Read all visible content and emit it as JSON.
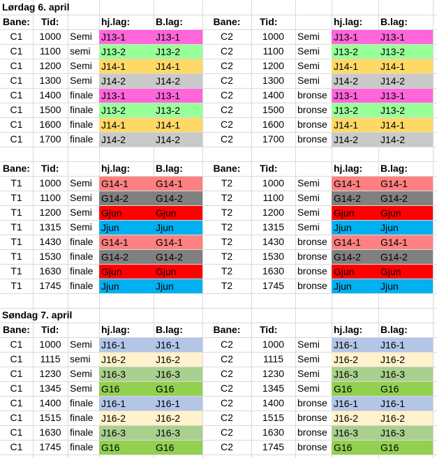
{
  "colors": {
    "J13-1": "#ff66d9",
    "J13-2": "#99ff99",
    "J14-1": "#ffd966",
    "J14-2": "#c9c9c9",
    "G14-1": "#ff8080",
    "G14-2": "#808080",
    "Gjun": "#ff0000",
    "Jjun": "#00b0f0",
    "J16-1": "#b4c6e7",
    "J16-2": "#fff2cc",
    "J16-3": "#a9d08e",
    "G16": "#92d050"
  },
  "sections": [
    {
      "title": "Lørdag 6. april",
      "headers": [
        "Bane:",
        "Tid:",
        "",
        "hj.lag:",
        "B.lag:",
        "Bane:",
        "Tid:",
        "",
        "hj.lag:",
        "B.lag:"
      ],
      "rows": [
        [
          "C1",
          "1000",
          "Semi",
          "J13-1",
          "J13-1",
          "C2",
          "1000",
          "Semi",
          "J13-1",
          "J13-1"
        ],
        [
          "C1",
          "1100",
          "semi",
          "J13-2",
          "J13-2",
          "C2",
          "1100",
          "Semi",
          "J13-2",
          "J13-2"
        ],
        [
          "C1",
          "1200",
          "Semi",
          "J14-1",
          "J14-1",
          "C2",
          "1200",
          "Semi",
          "J14-1",
          "J14-1"
        ],
        [
          "C1",
          "1300",
          "Semi",
          "J14-2",
          "J14-2",
          "C2",
          "1300",
          "Semi",
          "J14-2",
          "J14-2"
        ],
        [
          "C1",
          "1400",
          "finale",
          "J13-1",
          "J13-1",
          "C2",
          "1400",
          "bronse",
          "J13-1",
          "J13-1"
        ],
        [
          "C1",
          "1500",
          "finale",
          "J13-2",
          "J13-2",
          "C2",
          "1500",
          "bronse",
          "J13-2",
          "J13-2"
        ],
        [
          "C1",
          "1600",
          "finale",
          "J14-1",
          "J14-1",
          "C2",
          "1600",
          "bronse",
          "J14-1",
          "J14-1"
        ],
        [
          "C1",
          "1700",
          "finale",
          "J14-2",
          "J14-2",
          "C2",
          "1700",
          "bronse",
          "J14-2",
          "J14-2"
        ]
      ]
    },
    {
      "title": "",
      "headers": [
        "Bane:",
        "Tid:",
        "",
        "hj.lag:",
        "B.lag:",
        "Bane:",
        "Tid:",
        "",
        "hj.lag:",
        "B.lag:"
      ],
      "rows": [
        [
          "T1",
          "1000",
          "Semi",
          "G14-1",
          "G14-1",
          "T2",
          "1000",
          "Semi",
          "G14-1",
          "G14-1"
        ],
        [
          "T1",
          "1100",
          "Semi",
          "G14-2",
          "G14-2",
          "T2",
          "1100",
          "Semi",
          "G14-2",
          "G14-2"
        ],
        [
          "T1",
          "1200",
          "Semi",
          "Gjun",
          "Gjun",
          "T2",
          "1200",
          "Semi",
          "Gjun",
          "Gjun"
        ],
        [
          "T1",
          "1315",
          "Semi",
          "Jjun",
          "Jjun",
          "T2",
          "1315",
          "Semi",
          "Jjun",
          "Jjun"
        ],
        [
          "T1",
          "1430",
          "finale",
          "G14-1",
          "G14-1",
          "T2",
          "1430",
          "bronse",
          "G14-1",
          "G14-1"
        ],
        [
          "T1",
          "1530",
          "finale",
          "G14-2",
          "G14-2",
          "T2",
          "1530",
          "bronse",
          "G14-2",
          "G14-2"
        ],
        [
          "T1",
          "1630",
          "finale",
          "Gjun",
          "Gjun",
          "T2",
          "1630",
          "bronse",
          "Gjun",
          "Gjun"
        ],
        [
          "T1",
          "1745",
          "finale",
          "Jjun",
          "Jjun",
          "T2",
          "1745",
          "bronse",
          "Jjun",
          "Jjun"
        ]
      ]
    },
    {
      "title": "Søndag 7. april",
      "headers": [
        "Bane:",
        "Tid:",
        "",
        "hj.lag:",
        "B.lag:",
        "Bane:",
        "Tid:",
        "",
        "hj.lag:",
        "B.lag:"
      ],
      "rows": [
        [
          "C1",
          "1000",
          "Semi",
          "J16-1",
          "J16-1",
          "C2",
          "1000",
          "Semi",
          "J16-1",
          "J16-1"
        ],
        [
          "C1",
          "1115",
          "semi",
          "J16-2",
          "J16-2",
          "C2",
          "1115",
          "Semi",
          "J16-2",
          "J16-2"
        ],
        [
          "C1",
          "1230",
          "Semi",
          "J16-3",
          "J16-3",
          "C2",
          "1230",
          "Semi",
          "J16-3",
          "J16-3"
        ],
        [
          "C1",
          "1345",
          "Semi",
          "G16",
          "G16",
          "C2",
          "1345",
          "Semi",
          "G16",
          "G16"
        ],
        [
          "C1",
          "1400",
          "finale",
          "J16-1",
          "J16-1",
          "C2",
          "1400",
          "bronse",
          "J16-1",
          "J16-1"
        ],
        [
          "C1",
          "1515",
          "finale",
          "J16-2",
          "J16-2",
          "C2",
          "1515",
          "bronse",
          "J16-2",
          "J16-2"
        ],
        [
          "C1",
          "1630",
          "finale",
          "J16-3",
          "J16-3",
          "C2",
          "1630",
          "bronse",
          "J16-3",
          "J16-3"
        ],
        [
          "C1",
          "1745",
          "finale",
          "G16",
          "G16",
          "C2",
          "1745",
          "bronse",
          "G16",
          "G16"
        ]
      ]
    }
  ]
}
